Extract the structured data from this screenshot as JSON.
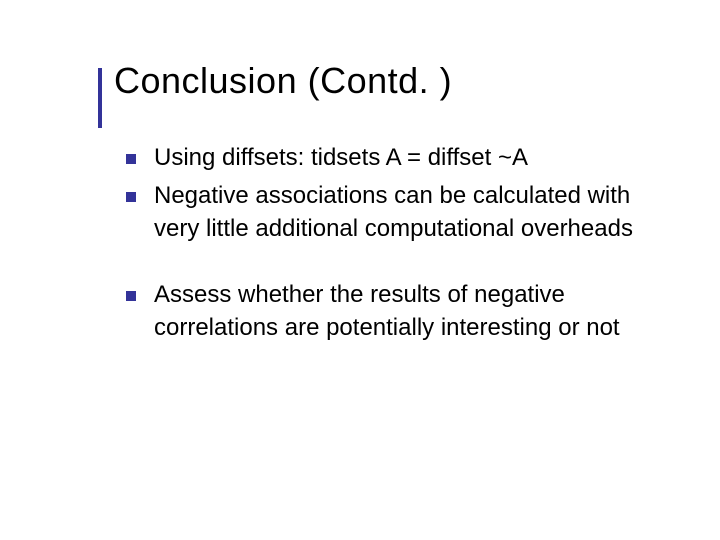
{
  "slide": {
    "title": "Conclusion (Contd. )",
    "accent_color": "#333399",
    "title_color": "#000000",
    "text_color": "#000000",
    "background_color": "#ffffff",
    "title_fontsize": 36,
    "bullet_fontsize": 24,
    "bullet_marker_size": 10,
    "bullets_group1": [
      "Using diffsets: tidsets A = diffset ~A",
      "Negative associations can be calculated with very little additional computational overheads"
    ],
    "bullets_group2": [
      "Assess whether the results of negative correlations are potentially interesting or not"
    ]
  }
}
